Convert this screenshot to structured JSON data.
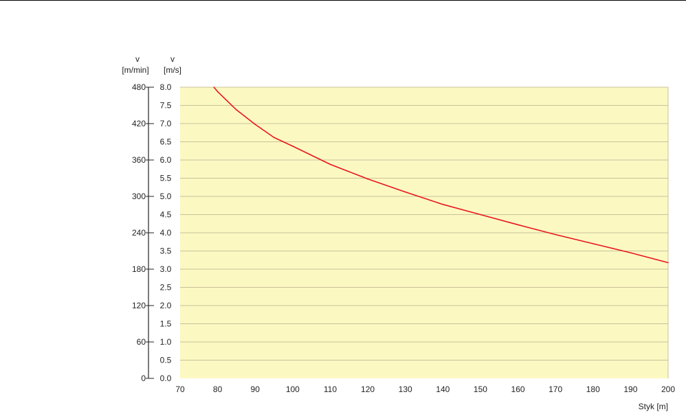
{
  "chart_data": {
    "type": "line",
    "xlabel": "Styk [m]",
    "ylabel_primary": "v [m/min]",
    "ylabel_secondary": "v [m/s]",
    "y_primary_header": [
      "v",
      "[m/min]"
    ],
    "y_secondary_header": [
      "v",
      "[m/s]"
    ],
    "xlim": [
      70,
      200
    ],
    "ylim_primary": [
      0,
      480
    ],
    "ylim_secondary": [
      0,
      8.0
    ],
    "x_ticks": [
      "70",
      "80",
      "90",
      "100",
      "110",
      "120",
      "130",
      "140",
      "150",
      "160",
      "170",
      "180",
      "190",
      "200"
    ],
    "y_primary_ticks": [
      {
        "value": 0,
        "label": "0"
      },
      {
        "value": 60,
        "label": "60"
      },
      {
        "value": 120,
        "label": "120"
      },
      {
        "value": 180,
        "label": "180"
      },
      {
        "value": 240,
        "label": "240"
      },
      {
        "value": 300,
        "label": "300"
      },
      {
        "value": 360,
        "label": "360"
      },
      {
        "value": 420,
        "label": "420"
      },
      {
        "value": 480,
        "label": "480"
      }
    ],
    "y_secondary_ticks": [
      {
        "value": 0.0,
        "label": "0.0"
      },
      {
        "value": 0.5,
        "label": "0.5"
      },
      {
        "value": 1.0,
        "label": "1.0"
      },
      {
        "value": 1.5,
        "label": "1.5"
      },
      {
        "value": 2.0,
        "label": "2.0"
      },
      {
        "value": 2.5,
        "label": "2.5"
      },
      {
        "value": 3.0,
        "label": "3.0"
      },
      {
        "value": 3.5,
        "label": "3.5"
      },
      {
        "value": 4.0,
        "label": "4.0"
      },
      {
        "value": 4.5,
        "label": "4.5"
      },
      {
        "value": 5.0,
        "label": "5.0"
      },
      {
        "value": 5.5,
        "label": "5.5"
      },
      {
        "value": 6.0,
        "label": "6.0"
      },
      {
        "value": 6.5,
        "label": "6.5"
      },
      {
        "value": 7.0,
        "label": "7.0"
      },
      {
        "value": 7.5,
        "label": "7.5"
      },
      {
        "value": 8.0,
        "label": "8.0"
      }
    ],
    "grid": true,
    "series": [
      {
        "color": "#e8141c",
        "unit": "m/s",
        "x": [
          79,
          80,
          85,
          90,
          95,
          100,
          110,
          120,
          130,
          140,
          150,
          160,
          170,
          180,
          190,
          200
        ],
        "y": [
          8.0,
          7.88,
          7.38,
          6.98,
          6.62,
          6.38,
          5.88,
          5.48,
          5.12,
          4.78,
          4.5,
          4.22,
          3.95,
          3.7,
          3.45,
          3.18
        ]
      }
    ],
    "colors": {
      "plot_background": "#fcf8c2",
      "gridline": "#c8c29a",
      "axis": "#222222",
      "line": "#e8141c"
    }
  }
}
